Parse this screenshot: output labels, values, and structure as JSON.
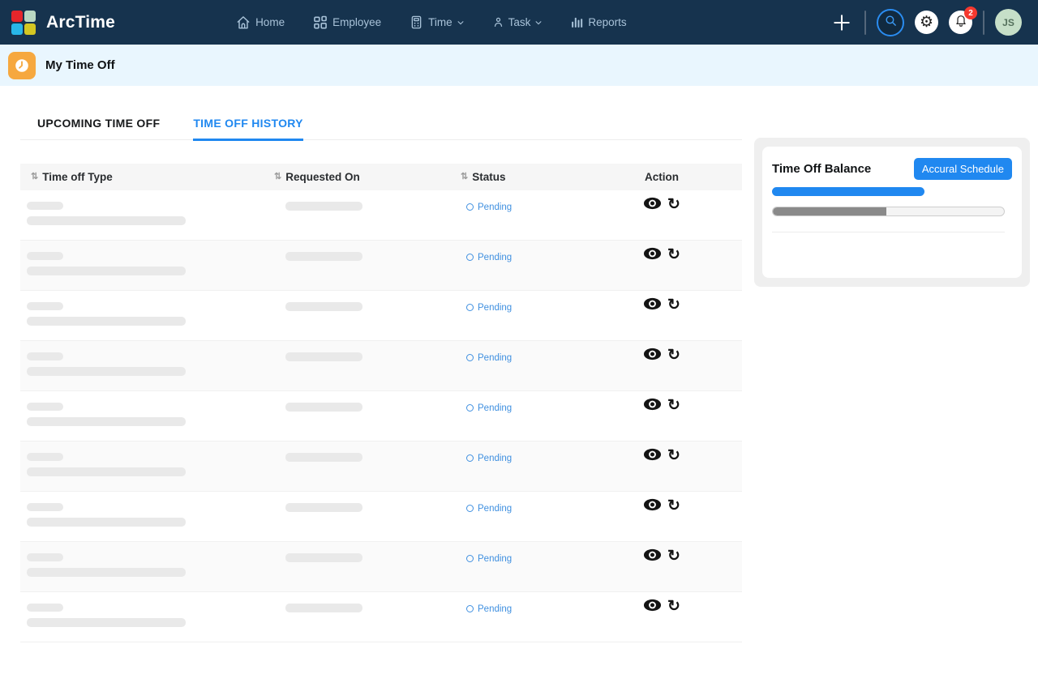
{
  "brand": {
    "name": "ArcTime"
  },
  "nav": {
    "items": [
      {
        "label": "Home",
        "icon": "home-icon",
        "dropdown": false
      },
      {
        "label": "Employee",
        "icon": "grid-icon",
        "dropdown": false
      },
      {
        "label": "Time",
        "icon": "time-clock-icon",
        "dropdown": true
      },
      {
        "label": "Task",
        "icon": "person-icon",
        "dropdown": true
      },
      {
        "label": "Reports",
        "icon": "bar-chart-icon",
        "dropdown": false
      }
    ]
  },
  "header_actions": {
    "notification_count": "2",
    "avatar_initials": "JS"
  },
  "page_header": {
    "title": "My Time Off",
    "icon": "clock-icon"
  },
  "tabs": [
    {
      "label": "UPCOMING TIME OFF",
      "active": false
    },
    {
      "label": "TIME OFF HISTORY",
      "active": true
    }
  ],
  "table": {
    "columns": [
      {
        "label": "Time off Type",
        "sortable": true
      },
      {
        "label": "Requested On",
        "sortable": true
      },
      {
        "label": "Status",
        "sortable": true
      },
      {
        "label": "Action",
        "sortable": false
      }
    ],
    "rows": [
      {
        "status": "Pending"
      },
      {
        "status": "Pending"
      },
      {
        "status": "Pending"
      },
      {
        "status": "Pending"
      },
      {
        "status": "Pending"
      },
      {
        "status": "Pending"
      },
      {
        "status": "Pending"
      },
      {
        "status": "Pending"
      },
      {
        "status": "Pending"
      }
    ]
  },
  "balance_card": {
    "title": "Time Off Balance",
    "button_label": "Accural Schedule",
    "progress_percent": 49
  },
  "icons": {
    "sort": "⇅",
    "gear": "⚙",
    "refresh": "↻"
  },
  "colors": {
    "header_bg": "#16334e",
    "accent_blue": "#2088f0",
    "pending_blue": "#4090e0",
    "page_icon_orange": "#f6a83f",
    "badge_red": "#f5392f",
    "avatar_green": "#c6dfc8"
  }
}
